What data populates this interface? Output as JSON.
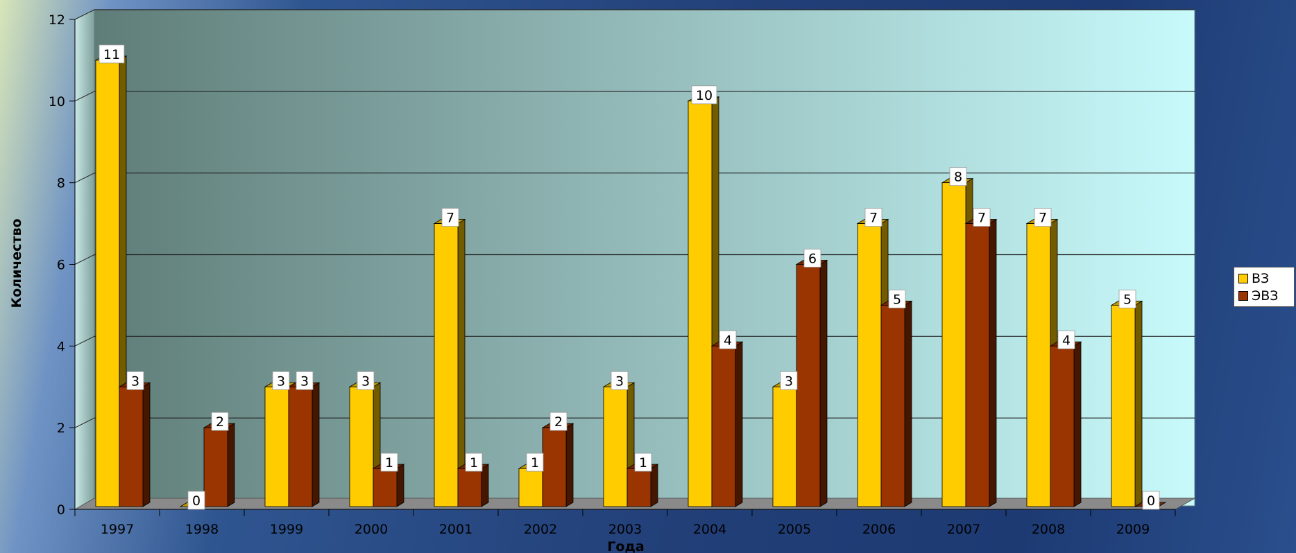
{
  "chart_data": {
    "type": "bar",
    "categories": [
      "1997",
      "1998",
      "1999",
      "2000",
      "2001",
      "2002",
      "2003",
      "2004",
      "2005",
      "2006",
      "2007",
      "2008",
      "2009"
    ],
    "series": [
      {
        "name": "ВЗ",
        "values": [
          11,
          0,
          3,
          3,
          7,
          1,
          3,
          10,
          3,
          7,
          8,
          7,
          5
        ],
        "color": "#ffcc00"
      },
      {
        "name": "ЭВЗ",
        "values": [
          3,
          2,
          3,
          1,
          1,
          2,
          1,
          4,
          6,
          5,
          7,
          4,
          0
        ],
        "color": "#9a3400"
      }
    ],
    "yticks": [
      "0",
      "2",
      "4",
      "6",
      "8",
      "10",
      "12"
    ],
    "ylim": [
      0,
      12
    ],
    "xlabel": "Года",
    "ylabel": "Количество",
    "grid": true,
    "legend_position": "right",
    "data_labels": true
  }
}
